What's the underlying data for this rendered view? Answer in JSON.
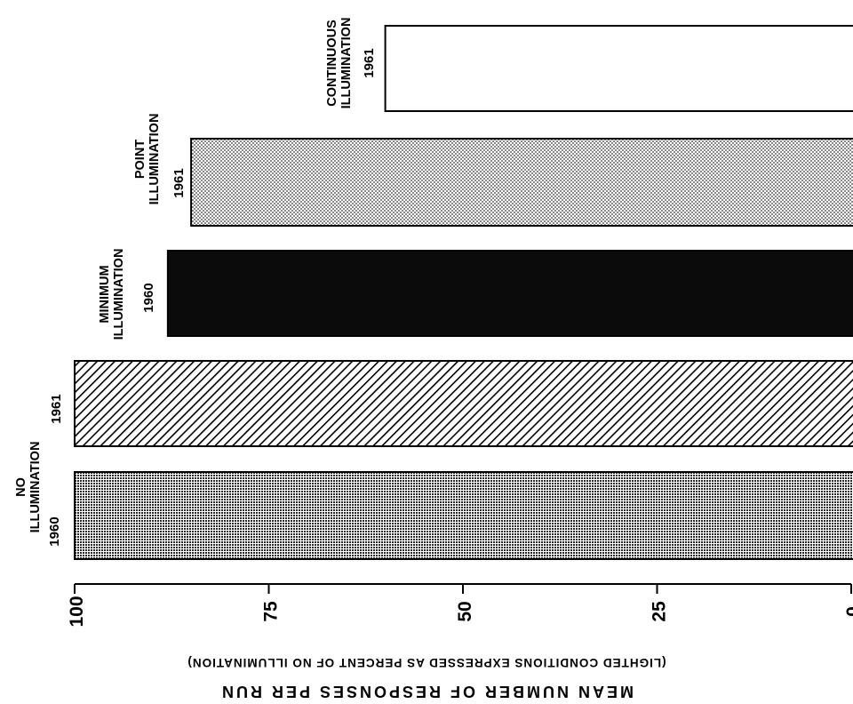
{
  "chart_data": {
    "type": "bar",
    "orientation": "horizontal-bars, rotated",
    "axis_direction": "reversed (100 at left, 0 at right)",
    "categories": [
      {
        "group": "NO ILLUMINATION",
        "year": "1960",
        "value": 100,
        "pattern": "dense-dots"
      },
      {
        "group": "NO ILLUMINATION",
        "year": "1961",
        "value": 100,
        "pattern": "diagonal-hatch"
      },
      {
        "group": "MINIMUM ILLUMINATION",
        "year": "1960",
        "value": 88,
        "pattern": "solid-black"
      },
      {
        "group": "POINT ILLUMINATION",
        "year": "1961",
        "value": 85,
        "pattern": "stipple"
      },
      {
        "group": "CONTINUOUS ILLUMINATION",
        "year": "1961",
        "value": 60,
        "pattern": "white"
      }
    ],
    "group_labels": [
      {
        "id": "no",
        "lines": [
          "NO",
          "ILLUMINATION"
        ]
      },
      {
        "id": "min",
        "lines": [
          "MINIMUM",
          "ILLUMINATION"
        ]
      },
      {
        "id": "point",
        "lines": [
          "POINT",
          "ILLUMINATION"
        ]
      },
      {
        "id": "cont",
        "lines": [
          "CONTINUOUS",
          "ILLUMINATION"
        ]
      }
    ],
    "ticks": [
      100,
      75,
      50,
      25,
      0
    ],
    "xlim": [
      100,
      0
    ],
    "xlabel": "MEAN NUMBER OF RESPONSES PER RUN",
    "xlabel_sub": "(LIGHTED CONDITIONS EXPRESSED AS PERCENT OF NO ILLUMINATION)",
    "grid": false
  }
}
